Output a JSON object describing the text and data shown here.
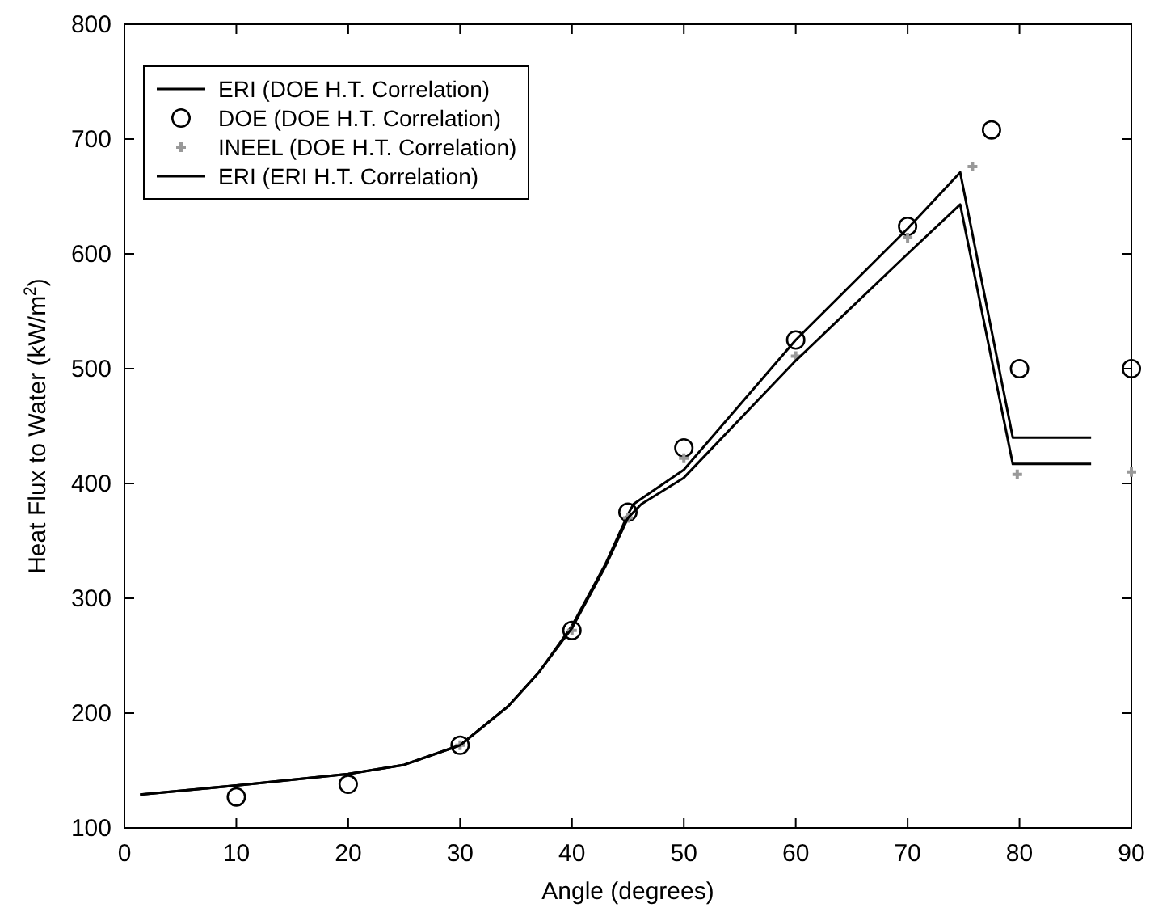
{
  "chart_data": {
    "type": "line",
    "xlabel": "Angle (degrees)",
    "ylabel": "Heat Flux to Water (kW/m$^{2}$)",
    "xlim": [
      0,
      90
    ],
    "xticks": [
      0,
      10,
      20,
      30,
      40,
      50,
      60,
      70,
      80,
      90
    ],
    "ylim": [
      100,
      800
    ],
    "yticks": [
      100,
      200,
      300,
      400,
      500,
      600,
      700,
      800
    ],
    "grid": false,
    "legend": "top left",
    "series": [
      {
        "name": "ERI (DOE H.T. Correlation)",
        "color": "#000000",
        "marker": "none",
        "x": [
          1.4,
          10,
          20,
          25,
          30,
          34.3,
          37,
          40,
          43,
          45,
          45.5,
          50,
          60,
          70,
          74.7,
          79.4,
          86.4
        ],
        "values": [
          129,
          137,
          147,
          155,
          172,
          206,
          235,
          276,
          330,
          373,
          382,
          412,
          525,
          622,
          671,
          440,
          440
        ]
      },
      {
        "name": "DOE (DOE H.T. Correlation)",
        "type": "scatter",
        "color": "#000000",
        "marker": "circle",
        "x": [
          10,
          20,
          30,
          40,
          45,
          50,
          60,
          70,
          77.5,
          80,
          90
        ],
        "values": [
          127,
          138,
          172,
          272,
          375,
          431,
          525,
          624,
          708,
          500,
          500
        ]
      },
      {
        "name": "INEEL (DOE H.T. Correlation)",
        "type": "scatter",
        "color": "#999999",
        "marker": "cross",
        "x": [
          30,
          40,
          45,
          50,
          60,
          70,
          75.8,
          79.8,
          90
        ],
        "values": [
          172,
          272,
          370,
          422,
          511,
          614,
          676,
          408,
          410
        ]
      },
      {
        "name": "ERI (ERI H.T. Correlation)",
        "color": "#000000",
        "marker": "none",
        "x": [
          1.4,
          10,
          20,
          25,
          30,
          34.3,
          37,
          40,
          43,
          45,
          46.2,
          50,
          60,
          70,
          74.7,
          79.4,
          86.4
        ],
        "values": [
          129,
          137,
          147,
          155,
          172,
          206,
          235,
          274,
          328,
          370,
          382,
          405,
          507,
          600,
          643,
          417,
          417
        ]
      }
    ]
  }
}
